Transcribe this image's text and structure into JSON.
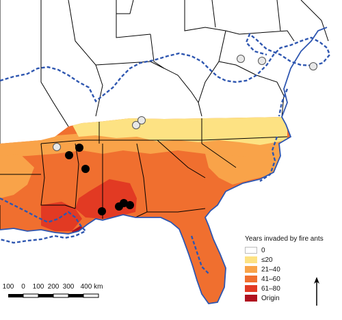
{
  "legend": {
    "title": "Years invaded by fire ants",
    "items": [
      {
        "label": "0",
        "color": "#ffffff"
      },
      {
        "label": "≤20",
        "color": "#fde283"
      },
      {
        "label": "21–40",
        "color": "#f9a349"
      },
      {
        "label": "41–60",
        "color": "#f06f2f"
      },
      {
        "label": "61–80",
        "color": "#e23a23"
      },
      {
        "label": "Origin",
        "color": "#b0111f"
      }
    ]
  },
  "scale": {
    "ticks": [
      "100",
      "0",
      "100",
      "200",
      "300",
      "400 km"
    ]
  },
  "colors": {
    "range_line": "#2e56b0",
    "black_sites": "#000000",
    "white_sites": "#e8e8e8",
    "boundaries": "#000000",
    "water": "#ffffff"
  }
}
